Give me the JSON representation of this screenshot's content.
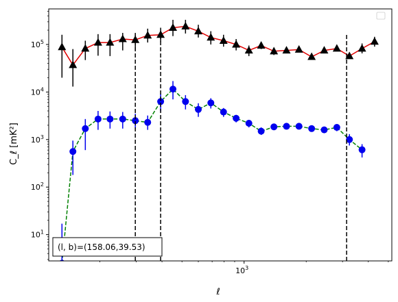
{
  "chart_data": {
    "type": "scatter",
    "xlabel": "ℓ",
    "ylabel": "C_ℓ  [mK²]",
    "xscale": "log",
    "yscale": "log",
    "xlim": [
      113,
      5200
    ],
    "ylim": [
      2.8,
      560000
    ],
    "x_ticks": [
      {
        "value": 1000,
        "base": "10",
        "exp": "3"
      }
    ],
    "y_ticks": [
      {
        "value": 10,
        "base": "10",
        "exp": "1"
      },
      {
        "value": 100,
        "base": "10",
        "exp": "2"
      },
      {
        "value": 1000,
        "base": "10",
        "exp": "3"
      },
      {
        "value": 10000,
        "base": "10",
        "exp": "4"
      },
      {
        "value": 100000,
        "base": "10",
        "exp": "5"
      }
    ],
    "vertical_lines": [
      297,
      394,
      3140
    ],
    "annotation": "(l, b)=(158.06,39.53)",
    "legend": {
      "position": "top-right",
      "entries": []
    },
    "grid": false,
    "series": [
      {
        "marker": "triangle",
        "marker_color": "#000000",
        "line_color": "#e00000",
        "line_style": "solid",
        "points": [
          {
            "x": 131,
            "y": 88000,
            "lo": 20000,
            "hi": 160000
          },
          {
            "x": 148,
            "y": 37000,
            "lo": 13000,
            "hi": 80000
          },
          {
            "x": 170,
            "y": 82000,
            "lo": 47000,
            "hi": 120000
          },
          {
            "x": 196,
            "y": 110000,
            "lo": 58000,
            "hi": 165000
          },
          {
            "x": 224,
            "y": 110000,
            "lo": 57000,
            "hi": 165000
          },
          {
            "x": 258,
            "y": 130000,
            "lo": 75000,
            "hi": 175000
          },
          {
            "x": 297,
            "y": 125000,
            "lo": 75000,
            "hi": 175000
          },
          {
            "x": 341,
            "y": 155000,
            "lo": 110000,
            "hi": 215000
          },
          {
            "x": 394,
            "y": 160000,
            "lo": 115000,
            "hi": 225000
          },
          {
            "x": 452,
            "y": 225000,
            "lo": 150000,
            "hi": 330000
          },
          {
            "x": 520,
            "y": 240000,
            "lo": 170000,
            "hi": 330000
          },
          {
            "x": 600,
            "y": 190000,
            "lo": 140000,
            "hi": 260000
          },
          {
            "x": 690,
            "y": 140000,
            "lo": 100000,
            "hi": 190000
          },
          {
            "x": 795,
            "y": 120000,
            "lo": 90000,
            "hi": 160000
          },
          {
            "x": 915,
            "y": 100000,
            "lo": 75000,
            "hi": 130000
          },
          {
            "x": 1055,
            "y": 75000,
            "lo": 57000,
            "hi": 95000
          },
          {
            "x": 1210,
            "y": 95000,
            "lo": 80000,
            "hi": 113000
          },
          {
            "x": 1395,
            "y": 72000,
            "lo": 60000,
            "hi": 86000
          },
          {
            "x": 1605,
            "y": 75000,
            "lo": 65000,
            "hi": 86000
          },
          {
            "x": 1845,
            "y": 78000,
            "lo": 70000,
            "hi": 88000
          },
          {
            "x": 2125,
            "y": 55000,
            "lo": 50000,
            "hi": 61000
          },
          {
            "x": 2445,
            "y": 75000,
            "lo": 67000,
            "hi": 84000
          },
          {
            "x": 2815,
            "y": 82000,
            "lo": 73000,
            "hi": 92000
          },
          {
            "x": 3240,
            "y": 57000,
            "lo": 50000,
            "hi": 67000
          },
          {
            "x": 3730,
            "y": 82000,
            "lo": 65000,
            "hi": 105000
          },
          {
            "x": 4290,
            "y": 115000,
            "lo": 90000,
            "hi": 145000
          }
        ]
      },
      {
        "marker": "circle",
        "marker_color": "#0000ee",
        "line_color": "#008000",
        "line_style": "dashed",
        "points": [
          {
            "x": 131,
            "y": 2.5,
            "lo": 1.5,
            "hi": 17
          },
          {
            "x": 148,
            "y": 560,
            "lo": 180,
            "hi": 950
          },
          {
            "x": 170,
            "y": 1700,
            "lo": 600,
            "hi": 2700
          },
          {
            "x": 196,
            "y": 2700,
            "lo": 1600,
            "hi": 4000
          },
          {
            "x": 224,
            "y": 2700,
            "lo": 1700,
            "hi": 3900
          },
          {
            "x": 258,
            "y": 2700,
            "lo": 1700,
            "hi": 3800
          },
          {
            "x": 297,
            "y": 2500,
            "lo": 1700,
            "hi": 3500
          },
          {
            "x": 341,
            "y": 2300,
            "lo": 1600,
            "hi": 3200
          },
          {
            "x": 394,
            "y": 6300,
            "lo": 3900,
            "hi": 9200
          },
          {
            "x": 452,
            "y": 11500,
            "lo": 7000,
            "hi": 17000
          },
          {
            "x": 520,
            "y": 6300,
            "lo": 4300,
            "hi": 8600
          },
          {
            "x": 600,
            "y": 4300,
            "lo": 3000,
            "hi": 5800
          },
          {
            "x": 690,
            "y": 5900,
            "lo": 4500,
            "hi": 7400
          },
          {
            "x": 795,
            "y": 3800,
            "lo": 3000,
            "hi": 4600
          },
          {
            "x": 915,
            "y": 2800,
            "lo": 2300,
            "hi": 3300
          },
          {
            "x": 1055,
            "y": 2200,
            "lo": 1800,
            "hi": 2600
          },
          {
            "x": 1210,
            "y": 1500,
            "lo": 1250,
            "hi": 1800
          },
          {
            "x": 1395,
            "y": 1850,
            "lo": 1600,
            "hi": 2100
          },
          {
            "x": 1605,
            "y": 1900,
            "lo": 1700,
            "hi": 2100
          },
          {
            "x": 1845,
            "y": 1900,
            "lo": 1700,
            "hi": 2100
          },
          {
            "x": 2125,
            "y": 1700,
            "lo": 1500,
            "hi": 1900
          },
          {
            "x": 2445,
            "y": 1600,
            "lo": 1450,
            "hi": 1780
          },
          {
            "x": 2815,
            "y": 1800,
            "lo": 1500,
            "hi": 2100
          },
          {
            "x": 3240,
            "y": 1000,
            "lo": 750,
            "hi": 1300
          },
          {
            "x": 3730,
            "y": 610,
            "lo": 420,
            "hi": 800
          }
        ]
      }
    ]
  }
}
